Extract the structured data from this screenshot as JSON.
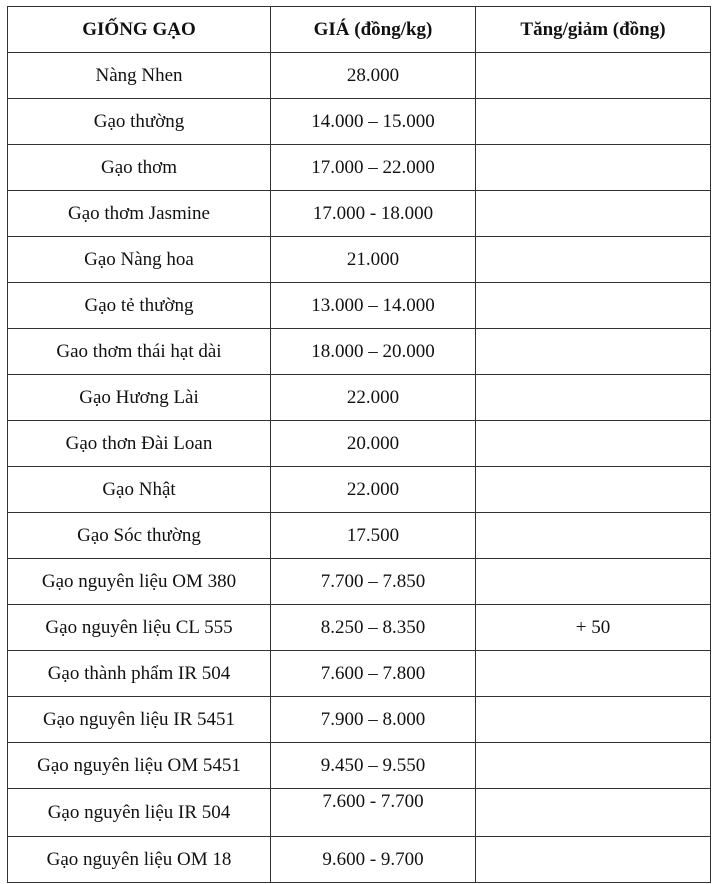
{
  "table": {
    "headers": [
      "GIỐNG GẠO",
      "GIÁ (đồng/kg)",
      "Tăng/giảm (đồng)"
    ],
    "rows": [
      {
        "variety": "Nàng Nhen",
        "price": "28.000",
        "change": ""
      },
      {
        "variety": "Gạo thường",
        "price": "14.000 – 15.000",
        "change": ""
      },
      {
        "variety": "Gạo thơm",
        "price": "17.000 – 22.000",
        "change": ""
      },
      {
        "variety": "Gạo thơm Jasmine",
        "price": "17.000 - 18.000",
        "change": ""
      },
      {
        "variety": "Gạo Nàng hoa",
        "price": "21.000",
        "change": ""
      },
      {
        "variety": "Gạo tẻ thường",
        "price": "13.000 – 14.000",
        "change": ""
      },
      {
        "variety": "Gao thơm thái hạt dài",
        "price": "18.000 – 20.000",
        "change": ""
      },
      {
        "variety": "Gạo Hương Lài",
        "price": "22.000",
        "change": ""
      },
      {
        "variety": "Gạo thơn Đài Loan",
        "price": "20.000",
        "change": ""
      },
      {
        "variety": "Gạo Nhật",
        "price": "22.000",
        "change": ""
      },
      {
        "variety": "Gạo Sóc thường",
        "price": "17.500",
        "change": ""
      },
      {
        "variety": "Gạo nguyên liệu OM 380",
        "price": "7.700 – 7.850",
        "change": ""
      },
      {
        "variety": "Gạo nguyên liệu CL 555",
        "price": "8.250 – 8.350",
        "change": "+ 50"
      },
      {
        "variety": "Gạo thành phẩm IR 504",
        "price": "7.600 – 7.800",
        "change": ""
      },
      {
        "variety": "Gạo nguyên liệu IR 5451",
        "price": "7.900 – 8.000",
        "change": ""
      },
      {
        "variety": "Gạo nguyên liệu OM 5451",
        "price": "9.450 – 9.550",
        "change": ""
      },
      {
        "variety": "Gạo nguyên liệu IR 504",
        "price": "7.600 - 7.700",
        "change": ""
      },
      {
        "variety": "Gạo nguyên liệu OM 18",
        "price": "9.600 - 9.700",
        "change": ""
      }
    ]
  }
}
